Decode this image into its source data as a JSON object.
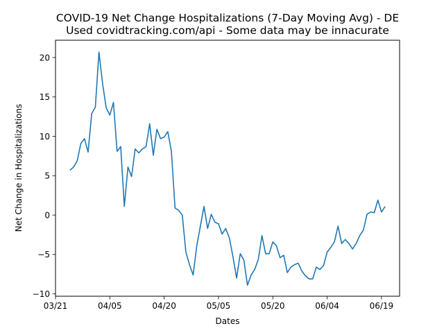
{
  "chart_data": {
    "type": "line",
    "title": "COVID-19 Net Change Hospitalizations (7-Day Moving Avg) - DE",
    "subtitle": "Used covidtracking.com/api - Some data may be innacurate",
    "xlabel": "Dates",
    "ylabel": "Net Change in Hospitalizations",
    "xlim": [
      "2020-03-21",
      "2020-06-24"
    ],
    "ylim": [
      -10.3,
      22.2
    ],
    "xticks": [
      {
        "date": "2020-03-21",
        "label": "03/21"
      },
      {
        "date": "2020-04-05",
        "label": "04/05"
      },
      {
        "date": "2020-04-20",
        "label": "04/20"
      },
      {
        "date": "2020-05-05",
        "label": "05/05"
      },
      {
        "date": "2020-05-20",
        "label": "05/20"
      },
      {
        "date": "2020-06-04",
        "label": "06/04"
      },
      {
        "date": "2020-06-19",
        "label": "06/19"
      }
    ],
    "yticks": [
      -10,
      -5,
      0,
      5,
      10,
      15,
      20
    ],
    "grid": false,
    "color": "#1f77b4",
    "series": [
      {
        "x": [
          "2020-03-25",
          "2020-03-26",
          "2020-03-27",
          "2020-03-28",
          "2020-03-29",
          "2020-03-30",
          "2020-03-31",
          "2020-04-01",
          "2020-04-02",
          "2020-04-03",
          "2020-04-04",
          "2020-04-05",
          "2020-04-06",
          "2020-04-07",
          "2020-04-08",
          "2020-04-09",
          "2020-04-10",
          "2020-04-11",
          "2020-04-12",
          "2020-04-13",
          "2020-04-14",
          "2020-04-15",
          "2020-04-16",
          "2020-04-17",
          "2020-04-18",
          "2020-04-19",
          "2020-04-20",
          "2020-04-21",
          "2020-04-22",
          "2020-04-23",
          "2020-04-24",
          "2020-04-25",
          "2020-04-26",
          "2020-04-27",
          "2020-04-28",
          "2020-04-29",
          "2020-04-30",
          "2020-05-01",
          "2020-05-02",
          "2020-05-03",
          "2020-05-04",
          "2020-05-05",
          "2020-05-06",
          "2020-05-07",
          "2020-05-08",
          "2020-05-09",
          "2020-05-10",
          "2020-05-11",
          "2020-05-12",
          "2020-05-13",
          "2020-05-14",
          "2020-05-15",
          "2020-05-16",
          "2020-05-17",
          "2020-05-18",
          "2020-05-19",
          "2020-05-20",
          "2020-05-21",
          "2020-05-22",
          "2020-05-23",
          "2020-05-24",
          "2020-05-25",
          "2020-05-26",
          "2020-05-27",
          "2020-05-28",
          "2020-05-29",
          "2020-05-30",
          "2020-05-31",
          "2020-06-01",
          "2020-06-02",
          "2020-06-03",
          "2020-06-04",
          "2020-06-05",
          "2020-06-06",
          "2020-06-07",
          "2020-06-08",
          "2020-06-09",
          "2020-06-10",
          "2020-06-11",
          "2020-06-12",
          "2020-06-13",
          "2020-06-14",
          "2020-06-15",
          "2020-06-16",
          "2020-06-17",
          "2020-06-18",
          "2020-06-19",
          "2020-06-20"
        ],
        "values": [
          5.7,
          6.1,
          6.9,
          9.1,
          9.7,
          8.0,
          12.9,
          13.7,
          20.7,
          16.7,
          13.6,
          12.7,
          14.3,
          8.1,
          8.7,
          1.1,
          6.1,
          4.9,
          8.4,
          7.9,
          8.4,
          8.7,
          11.6,
          7.6,
          10.9,
          9.7,
          9.9,
          10.6,
          8.1,
          0.9,
          0.6,
          0.0,
          -4.7,
          -6.3,
          -7.6,
          -3.9,
          -1.4,
          1.1,
          -1.7,
          0.1,
          -0.9,
          -1.1,
          -2.4,
          -1.7,
          -2.9,
          -5.3,
          -8.0,
          -4.9,
          -5.7,
          -8.9,
          -7.6,
          -6.9,
          -5.6,
          -2.6,
          -4.9,
          -4.9,
          -3.4,
          -3.9,
          -5.4,
          -5.1,
          -7.3,
          -6.6,
          -6.3,
          -6.1,
          -7.1,
          -7.7,
          -8.1,
          -8.1,
          -6.6,
          -6.9,
          -6.4,
          -4.7,
          -4.1,
          -3.4,
          -1.4,
          -3.6,
          -3.1,
          -3.6,
          -4.3,
          -3.6,
          -2.6,
          -1.9,
          0.1,
          0.4,
          0.3,
          1.9,
          0.4,
          1.1
        ]
      }
    ]
  }
}
